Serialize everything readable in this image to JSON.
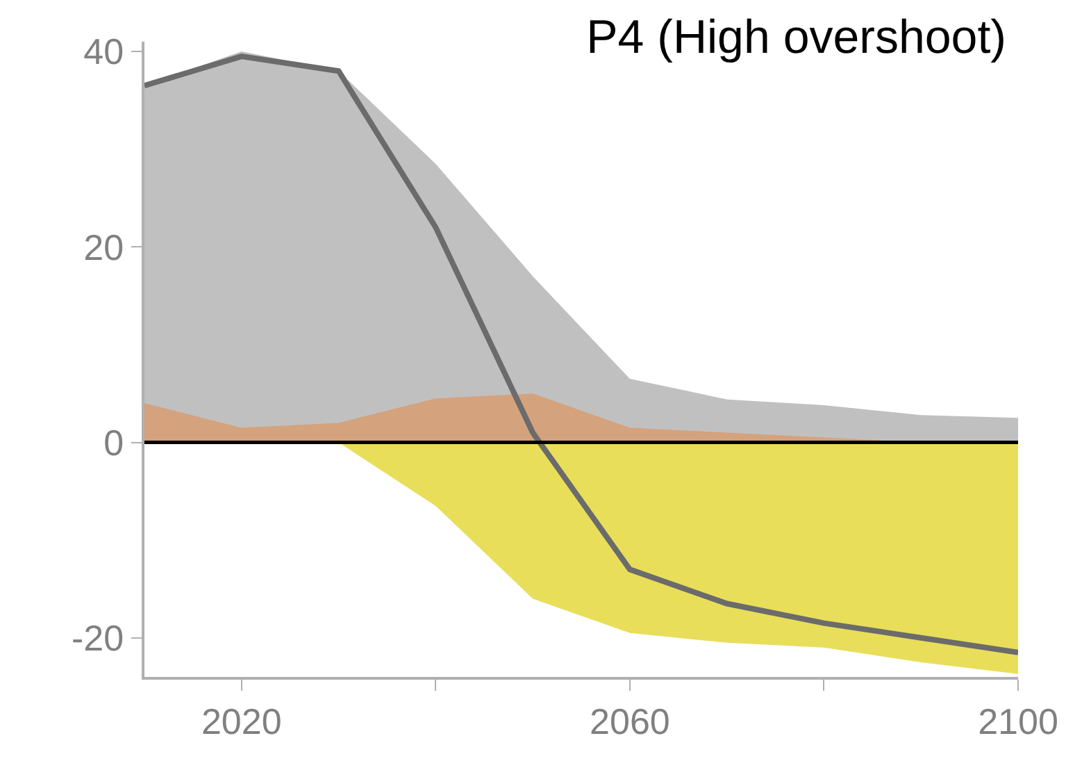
{
  "chart_data": {
    "type": "area",
    "title": "P4 (High overshoot)",
    "x": [
      2010,
      2020,
      2030,
      2040,
      2050,
      2060,
      2070,
      2080,
      2090,
      2100
    ],
    "series": [
      {
        "color": "#c0c0c0",
        "values": [
          36.5,
          40,
          38,
          28.5,
          17,
          6.5,
          4.4,
          3.8,
          2.8,
          2.5
        ]
      },
      {
        "color": "#d4a27c",
        "values": [
          4,
          1.5,
          2,
          4.5,
          5,
          1.5,
          1,
          0.5,
          0,
          -1
        ]
      },
      {
        "color": "#e8de5a",
        "values": [
          0,
          0,
          0,
          -6.5,
          -16,
          -19.5,
          -20.5,
          -21,
          -22.5,
          -23.7
        ]
      },
      {
        "type": "line",
        "color": "#6b6b6b",
        "values": [
          36.5,
          39.5,
          38,
          22,
          1,
          -13,
          -16.5,
          -18.5,
          -20,
          -21.5
        ]
      }
    ],
    "xlim": [
      2010,
      2100
    ],
    "xticks": [
      2020,
      {
        "value": 2040,
        "label": null
      },
      2060,
      {
        "value": 2080,
        "label": null
      },
      2100
    ],
    "ylim": [
      -24,
      41
    ],
    "yticks": [
      -20,
      0,
      20,
      40
    ],
    "ref_lines": [
      {
        "axis": "y",
        "value": 0,
        "color": "#000000"
      }
    ],
    "line_style": "solid",
    "marker": "none"
  }
}
